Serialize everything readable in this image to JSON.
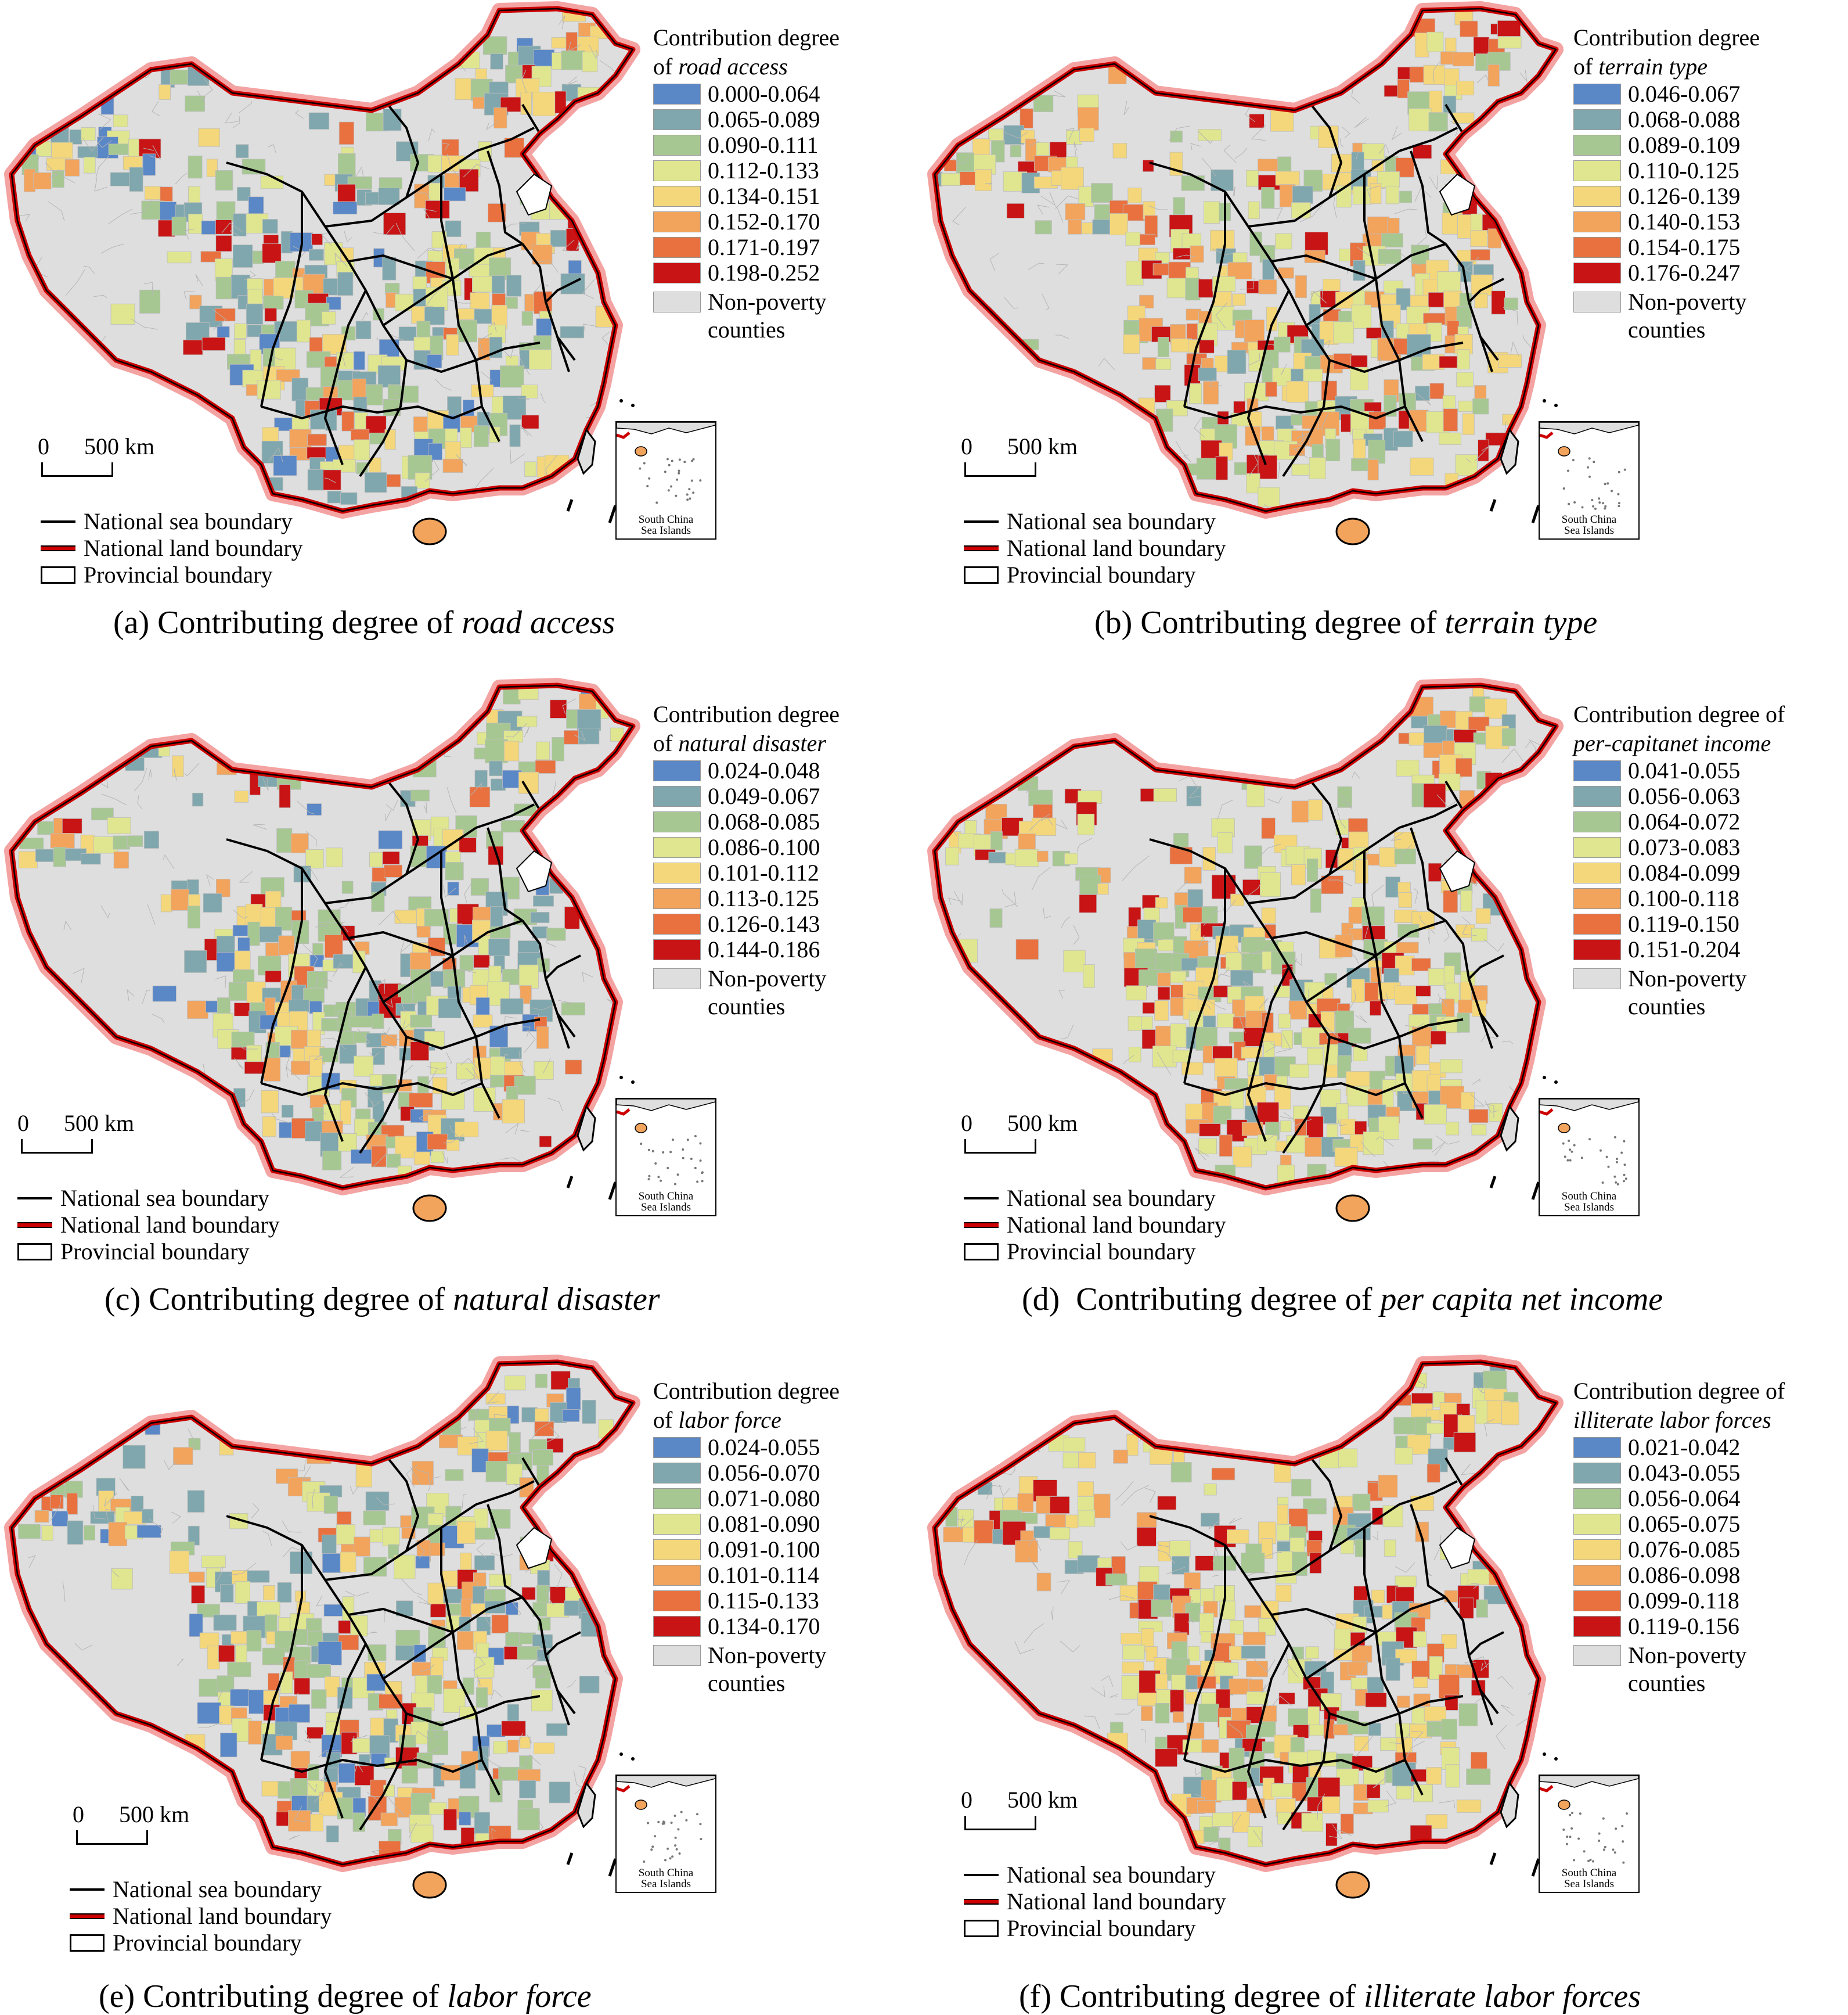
{
  "colors": {
    "class1": "#5a87c6",
    "class2": "#7fa7ad",
    "class3": "#a7c792",
    "class4": "#dfe68f",
    "class5": "#f3d77a",
    "class6": "#f2a35c",
    "class7": "#e8713f",
    "class8": "#c81414",
    "non_poverty": "#dedede",
    "land_boundary": "#cc0000"
  },
  "common": {
    "non_poverty_label": "Non-poverty\ncounties",
    "scale_zero": "0",
    "scale_dist": "500 km",
    "sea_boundary": "National sea boundary",
    "land_boundary": "National land boundary",
    "provincial_boundary": "Provincial boundary",
    "inset_label": "South China\nSea Islands"
  },
  "panels": [
    {
      "legend_title_prefix": "Contribution degree\nof ",
      "legend_title_italic": "road access",
      "classes": [
        "0.000-0.064",
        "0.065-0.089",
        "0.090-0.111",
        "0.112-0.133",
        "0.134-0.151",
        "0.152-0.170",
        "0.171-0.197",
        "0.198-0.252"
      ],
      "caption_prefix": "(a) Contributing degree of ",
      "caption_italic": "road access"
    },
    {
      "legend_title_prefix": "Contribution degree\nof ",
      "legend_title_italic": "terrain type",
      "classes": [
        "0.046-0.067",
        "0.068-0.088",
        "0.089-0.109",
        "0.110-0.125",
        "0.126-0.139",
        "0.140-0.153",
        "0.154-0.175",
        "0.176-0.247"
      ],
      "caption_prefix": "(b) Contributing degree of ",
      "caption_italic": "terrain type"
    },
    {
      "legend_title_prefix": "Contribution degree\nof  ",
      "legend_title_italic": "natural disaster",
      "classes": [
        "0.024-0.048",
        "0.049-0.067",
        "0.068-0.085",
        "0.086-0.100",
        "0.101-0.112",
        "0.113-0.125",
        "0.126-0.143",
        "0.144-0.186"
      ],
      "caption_prefix": "(c) Contributing degree of ",
      "caption_italic": "natural disaster"
    },
    {
      "legend_title_prefix": "Contribution degree of\n",
      "legend_title_italic": "per-capitanet income",
      "classes": [
        "0.041-0.055",
        "0.056-0.063",
        "0.064-0.072",
        "0.073-0.083",
        "0.084-0.099",
        "0.100-0.118",
        "0.119-0.150",
        "0.151-0.204"
      ],
      "caption_prefix": "(d)  Contributing degree of ",
      "caption_italic": "per capita net income"
    },
    {
      "legend_title_prefix": "Contribution degree\nof ",
      "legend_title_italic": "labor force",
      "classes": [
        "0.024-0.055",
        "0.056-0.070",
        "0.071-0.080",
        "0.081-0.090",
        "0.091-0.100",
        "0.101-0.114",
        "0.115-0.133",
        "0.134-0.170"
      ],
      "caption_prefix": "(e) Contributing degree of ",
      "caption_italic": "labor force"
    },
    {
      "legend_title_prefix": "Contribution degree of\n",
      "legend_title_italic": "illiterate labor forces",
      "classes": [
        "0.021-0.042",
        "0.043-0.055",
        "0.056-0.064",
        "0.065-0.075",
        "0.076-0.085",
        "0.086-0.098",
        "0.099-0.118",
        "0.119-0.156"
      ],
      "caption_prefix": "(f) Contributing degree of ",
      "caption_italic": "illiterate labor forces"
    }
  ]
}
